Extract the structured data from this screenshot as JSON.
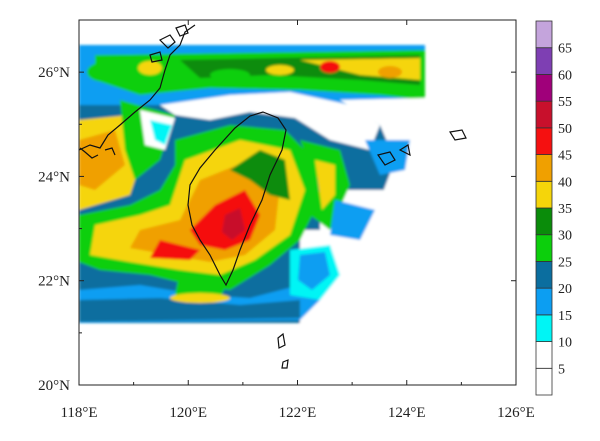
{
  "map": {
    "x_ticks": [
      {
        "lon": 118,
        "label": "118°E"
      },
      {
        "lon": 120,
        "label": "120°E"
      },
      {
        "lon": 122,
        "label": "122°E"
      },
      {
        "lon": 124,
        "label": "124°E"
      },
      {
        "lon": 126,
        "label": "126°E"
      }
    ],
    "y_ticks": [
      {
        "lat": 20,
        "label": "20°N"
      },
      {
        "lat": 22,
        "label": "22°N"
      },
      {
        "lat": 24,
        "label": "24°N"
      },
      {
        "lat": 26,
        "label": "26°N"
      }
    ],
    "extent": {
      "lon_min": 118,
      "lon_max": 126,
      "lat_min": 20,
      "lat_max": 27
    }
  },
  "colorbar": {
    "levels": [
      "5",
      "10",
      "15",
      "20",
      "25",
      "30",
      "35",
      "40",
      "45",
      "50",
      "55",
      "60",
      "65"
    ],
    "colors": [
      "#ffffff",
      "#ffffff",
      "#00f5f5",
      "#0c9ef2",
      "#0b6e9f",
      "#0ccf0c",
      "#0a8c0a",
      "#f5d50a",
      "#f0a000",
      "#f51010",
      "#c8102c",
      "#a0007a",
      "#7e3fb3",
      "#c4a4dc"
    ]
  }
}
